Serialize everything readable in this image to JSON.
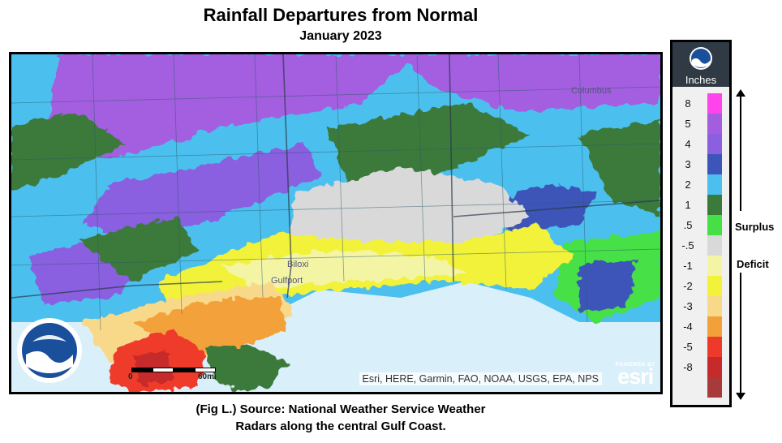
{
  "title": "Rainfall Departures from Normal",
  "subtitle": "January 2023",
  "caption": {
    "line1": "(Fig L.) Source: National Weather Service Weather",
    "line2": "Radars along the central Gulf Coast."
  },
  "map": {
    "attribution": "Esri, HERE, Garmin, FAO, NOAA, USGS, EPA, NPS",
    "esri_powered": "POWERED BY",
    "esri_word": "esri",
    "scale_labels": [
      "0",
      "60mi"
    ],
    "place_labels": [
      "Biloxi",
      "Gulfport",
      "Columbus"
    ],
    "colors": {
      "water": "#d9f0fb",
      "surplus_8": "#ff44ee",
      "surplus_5": "#a35ee0",
      "surplus_4": "#8a5fe0",
      "surplus_3": "#3d55b8",
      "surplus_2": "#4bc0ee",
      "surplus_1": "#3a7a3a",
      "surplus_05": "#46e046",
      "neutral": "#d9d9d9",
      "deficit_05": "#f3f5a5",
      "deficit_1": "#f2f23a",
      "deficit_2": "#f8d98a",
      "deficit_3": "#f2a13a",
      "deficit_4": "#ee3a2a",
      "deficit_5": "#c62a2a",
      "deficit_8": "#a83a3a"
    }
  },
  "legend": {
    "unit": "Inches",
    "logo_icon": "noaa-logo-icon",
    "items": [
      {
        "label": "8",
        "color": "#ff44ee"
      },
      {
        "label": "5",
        "color": "#a35ee0"
      },
      {
        "label": "4",
        "color": "#8a5fe0"
      },
      {
        "label": "3",
        "color": "#3d55b8"
      },
      {
        "label": "2",
        "color": "#4bc0ee"
      },
      {
        "label": "1",
        "color": "#3a7a3a"
      },
      {
        "label": ".5",
        "color": "#46e046"
      },
      {
        "label": "-.5",
        "color": "#d9d9d9"
      },
      {
        "label": "-1",
        "color": "#f3f5a5"
      },
      {
        "label": "-2",
        "color": "#f2f23a"
      },
      {
        "label": "-3",
        "color": "#f8d98a"
      },
      {
        "label": "-4",
        "color": "#f2a13a"
      },
      {
        "label": "-5",
        "color": "#ee3a2a"
      },
      {
        "label": "-8",
        "color": "#c62a2a"
      },
      {
        "label": "",
        "color": "#a83a3a"
      }
    ],
    "surplus_label": "Surplus",
    "deficit_label": "Deficit"
  }
}
